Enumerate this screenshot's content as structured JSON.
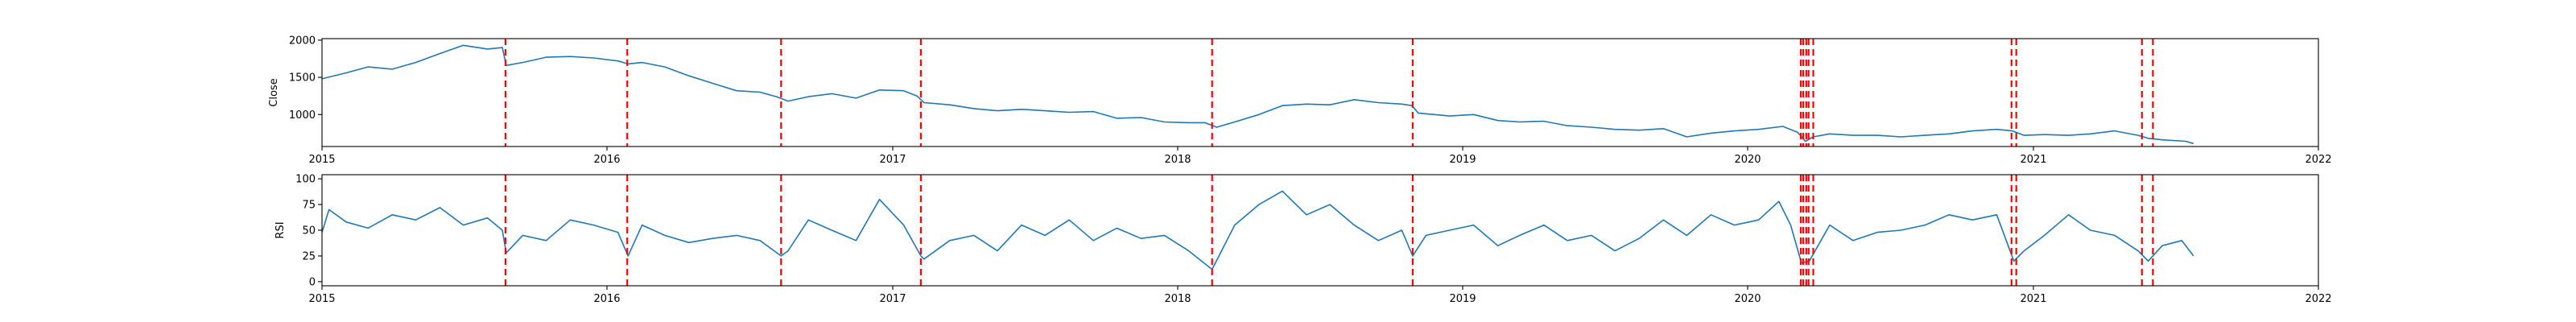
{
  "chart_data": [
    {
      "type": "line",
      "ylabel": "Close",
      "xlim": [
        "2015-01-01",
        "2022-01-01"
      ],
      "ylim": [
        570,
        2020
      ],
      "yticks": [
        1000,
        1500,
        2000
      ],
      "xtick_labels": [
        "2015",
        "2016",
        "2017",
        "2018",
        "2019",
        "2020",
        "2021",
        "2022"
      ],
      "grid": false,
      "series": [
        {
          "color": "#1f77b4",
          "points": [
            [
              "2015-01-01",
              1480
            ],
            [
              "2015-02-01",
              1560
            ],
            [
              "2015-03-01",
              1640
            ],
            [
              "2015-04-01",
              1610
            ],
            [
              "2015-05-01",
              1700
            ],
            [
              "2015-06-01",
              1820
            ],
            [
              "2015-07-01",
              1930
            ],
            [
              "2015-08-01",
              1880
            ],
            [
              "2015-08-20",
              1900
            ],
            [
              "2015-08-25",
              1660
            ],
            [
              "2015-09-15",
              1700
            ],
            [
              "2015-10-15",
              1770
            ],
            [
              "2015-11-15",
              1780
            ],
            [
              "2015-12-15",
              1760
            ],
            [
              "2016-01-15",
              1720
            ],
            [
              "2016-01-28",
              1680
            ],
            [
              "2016-02-15",
              1700
            ],
            [
              "2016-03-15",
              1640
            ],
            [
              "2016-04-15",
              1520
            ],
            [
              "2016-05-15",
              1420
            ],
            [
              "2016-06-15",
              1320
            ],
            [
              "2016-07-15",
              1300
            ],
            [
              "2016-08-05",
              1240
            ],
            [
              "2016-08-20",
              1180
            ],
            [
              "2016-09-15",
              1240
            ],
            [
              "2016-10-15",
              1280
            ],
            [
              "2016-11-15",
              1220
            ],
            [
              "2016-12-15",
              1330
            ],
            [
              "2017-01-15",
              1320
            ],
            [
              "2017-02-01",
              1250
            ],
            [
              "2017-02-10",
              1160
            ],
            [
              "2017-03-15",
              1130
            ],
            [
              "2017-04-15",
              1080
            ],
            [
              "2017-05-15",
              1050
            ],
            [
              "2017-06-15",
              1070
            ],
            [
              "2017-07-15",
              1050
            ],
            [
              "2017-08-15",
              1030
            ],
            [
              "2017-09-15",
              1040
            ],
            [
              "2017-10-15",
              950
            ],
            [
              "2017-11-15",
              960
            ],
            [
              "2017-12-15",
              900
            ],
            [
              "2018-01-15",
              890
            ],
            [
              "2018-02-05",
              890
            ],
            [
              "2018-02-20",
              830
            ],
            [
              "2018-03-15",
              900
            ],
            [
              "2018-04-15",
              1000
            ],
            [
              "2018-05-15",
              1120
            ],
            [
              "2018-06-15",
              1140
            ],
            [
              "2018-07-15",
              1130
            ],
            [
              "2018-08-15",
              1200
            ],
            [
              "2018-09-15",
              1160
            ],
            [
              "2018-10-15",
              1140
            ],
            [
              "2018-10-28",
              1120
            ],
            [
              "2018-11-05",
              1020
            ],
            [
              "2018-12-15",
              980
            ],
            [
              "2019-01-15",
              1000
            ],
            [
              "2019-02-15",
              920
            ],
            [
              "2019-03-15",
              900
            ],
            [
              "2019-04-15",
              910
            ],
            [
              "2019-05-15",
              850
            ],
            [
              "2019-06-15",
              830
            ],
            [
              "2019-07-15",
              800
            ],
            [
              "2019-08-15",
              790
            ],
            [
              "2019-09-15",
              810
            ],
            [
              "2019-10-15",
              700
            ],
            [
              "2019-11-15",
              750
            ],
            [
              "2019-12-15",
              780
            ],
            [
              "2020-01-15",
              800
            ],
            [
              "2020-02-15",
              840
            ],
            [
              "2020-03-05",
              760
            ],
            [
              "2020-03-15",
              640
            ],
            [
              "2020-03-25",
              700
            ],
            [
              "2020-04-15",
              740
            ],
            [
              "2020-05-15",
              720
            ],
            [
              "2020-06-15",
              720
            ],
            [
              "2020-07-15",
              700
            ],
            [
              "2020-08-15",
              720
            ],
            [
              "2020-09-15",
              740
            ],
            [
              "2020-10-15",
              780
            ],
            [
              "2020-11-15",
              800
            ],
            [
              "2020-12-05",
              780
            ],
            [
              "2020-12-20",
              720
            ],
            [
              "2021-01-15",
              730
            ],
            [
              "2021-02-15",
              720
            ],
            [
              "2021-03-15",
              740
            ],
            [
              "2021-04-15",
              780
            ],
            [
              "2021-05-15",
              720
            ],
            [
              "2021-05-28",
              680
            ],
            [
              "2021-06-15",
              660
            ],
            [
              "2021-07-15",
              640
            ],
            [
              "2021-07-25",
              610
            ]
          ]
        }
      ],
      "vlines": {
        "color": "#ff0000",
        "style": "dashed",
        "x": [
          "2015-08-24",
          "2016-01-27",
          "2016-08-11",
          "2017-02-06",
          "2018-02-14",
          "2018-10-29",
          "2020-03-09",
          "2020-03-12",
          "2020-03-16",
          "2020-03-19",
          "2020-03-25",
          "2020-12-04",
          "2020-12-10",
          "2021-05-20",
          "2021-06-03"
        ]
      }
    },
    {
      "type": "line",
      "ylabel": "RSI",
      "xlim": [
        "2015-01-01",
        "2022-01-01"
      ],
      "ylim": [
        -4,
        104
      ],
      "yticks": [
        0,
        25,
        50,
        75,
        100
      ],
      "xtick_labels": [
        "2015",
        "2016",
        "2017",
        "2018",
        "2019",
        "2020",
        "2021",
        "2022"
      ],
      "grid": false,
      "series": [
        {
          "color": "#1f77b4",
          "points": [
            [
              "2015-01-01",
              48
            ],
            [
              "2015-01-10",
              70
            ],
            [
              "2015-02-01",
              58
            ],
            [
              "2015-03-01",
              52
            ],
            [
              "2015-04-01",
              65
            ],
            [
              "2015-05-01",
              60
            ],
            [
              "2015-06-01",
              72
            ],
            [
              "2015-07-01",
              55
            ],
            [
              "2015-08-01",
              62
            ],
            [
              "2015-08-20",
              50
            ],
            [
              "2015-08-25",
              28
            ],
            [
              "2015-09-15",
              45
            ],
            [
              "2015-10-15",
              40
            ],
            [
              "2015-11-15",
              60
            ],
            [
              "2015-12-15",
              55
            ],
            [
              "2016-01-15",
              48
            ],
            [
              "2016-01-28",
              25
            ],
            [
              "2016-02-15",
              55
            ],
            [
              "2016-03-15",
              45
            ],
            [
              "2016-04-15",
              38
            ],
            [
              "2016-05-15",
              42
            ],
            [
              "2016-06-15",
              45
            ],
            [
              "2016-07-15",
              40
            ],
            [
              "2016-08-11",
              25
            ],
            [
              "2016-08-20",
              30
            ],
            [
              "2016-09-15",
              60
            ],
            [
              "2016-10-15",
              50
            ],
            [
              "2016-11-15",
              40
            ],
            [
              "2016-12-15",
              80
            ],
            [
              "2017-01-15",
              55
            ],
            [
              "2017-02-06",
              25
            ],
            [
              "2017-02-10",
              22
            ],
            [
              "2017-03-15",
              40
            ],
            [
              "2017-04-15",
              45
            ],
            [
              "2017-05-15",
              30
            ],
            [
              "2017-06-15",
              55
            ],
            [
              "2017-07-15",
              45
            ],
            [
              "2017-08-15",
              60
            ],
            [
              "2017-09-15",
              40
            ],
            [
              "2017-10-15",
              52
            ],
            [
              "2017-11-15",
              42
            ],
            [
              "2017-12-15",
              45
            ],
            [
              "2018-01-15",
              30
            ],
            [
              "2018-02-14",
              12
            ],
            [
              "2018-03-15",
              55
            ],
            [
              "2018-04-15",
              75
            ],
            [
              "2018-05-15",
              88
            ],
            [
              "2018-06-15",
              65
            ],
            [
              "2018-07-15",
              75
            ],
            [
              "2018-08-15",
              55
            ],
            [
              "2018-09-15",
              40
            ],
            [
              "2018-10-15",
              50
            ],
            [
              "2018-10-29",
              25
            ],
            [
              "2018-11-15",
              45
            ],
            [
              "2018-12-15",
              50
            ],
            [
              "2019-01-15",
              55
            ],
            [
              "2019-02-15",
              35
            ],
            [
              "2019-03-15",
              45
            ],
            [
              "2019-04-15",
              55
            ],
            [
              "2019-05-15",
              40
            ],
            [
              "2019-06-15",
              45
            ],
            [
              "2019-07-15",
              30
            ],
            [
              "2019-08-15",
              42
            ],
            [
              "2019-09-15",
              60
            ],
            [
              "2019-10-15",
              45
            ],
            [
              "2019-11-15",
              65
            ],
            [
              "2019-12-15",
              55
            ],
            [
              "2020-01-15",
              60
            ],
            [
              "2020-02-10",
              78
            ],
            [
              "2020-02-25",
              55
            ],
            [
              "2020-03-10",
              18
            ],
            [
              "2020-03-20",
              20
            ],
            [
              "2020-04-15",
              55
            ],
            [
              "2020-05-15",
              40
            ],
            [
              "2020-06-15",
              48
            ],
            [
              "2020-07-15",
              50
            ],
            [
              "2020-08-15",
              55
            ],
            [
              "2020-09-15",
              65
            ],
            [
              "2020-10-15",
              60
            ],
            [
              "2020-11-15",
              65
            ],
            [
              "2020-12-07",
              20
            ],
            [
              "2020-12-20",
              30
            ],
            [
              "2021-01-15",
              45
            ],
            [
              "2021-02-15",
              65
            ],
            [
              "2021-03-15",
              50
            ],
            [
              "2021-04-15",
              45
            ],
            [
              "2021-05-15",
              30
            ],
            [
              "2021-05-28",
              20
            ],
            [
              "2021-06-15",
              35
            ],
            [
              "2021-07-10",
              40
            ],
            [
              "2021-07-25",
              25
            ]
          ]
        }
      ],
      "vlines": {
        "color": "#ff0000",
        "style": "dashed",
        "x": [
          "2015-08-24",
          "2016-01-27",
          "2016-08-11",
          "2017-02-06",
          "2018-02-14",
          "2018-10-29",
          "2020-03-09",
          "2020-03-12",
          "2020-03-16",
          "2020-03-19",
          "2020-03-25",
          "2020-12-04",
          "2020-12-10",
          "2021-05-20",
          "2021-06-03"
        ]
      }
    }
  ]
}
